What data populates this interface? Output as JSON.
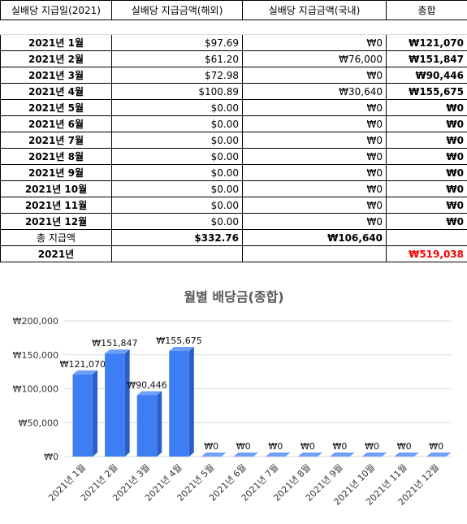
{
  "table": {
    "headers": [
      "실배당 지급일(2021)",
      "실배당 지급금액(해외)",
      "실배당 지급금액(국내)",
      "총합"
    ],
    "rows": [
      {
        "month": "2021년 1월",
        "overseas": "$97.69",
        "domestic": "₩0",
        "total": "₩121,070"
      },
      {
        "month": "2021년 2월",
        "overseas": "$61.20",
        "domestic": "₩76,000",
        "total": "₩151,847"
      },
      {
        "month": "2021년 3월",
        "overseas": "$72.98",
        "domestic": "₩0",
        "total": "₩90,446"
      },
      {
        "month": "2021년 4월",
        "overseas": "$100.89",
        "domestic": "₩30,640",
        "total": "₩155,675"
      },
      {
        "month": "2021년 5월",
        "overseas": "$0.00",
        "domestic": "₩0",
        "total": "₩0"
      },
      {
        "month": "2021년 6월",
        "overseas": "$0.00",
        "domestic": "₩0",
        "total": "₩0"
      },
      {
        "month": "2021년 7월",
        "overseas": "$0.00",
        "domestic": "₩0",
        "total": "₩0"
      },
      {
        "month": "2021년 8월",
        "overseas": "$0.00",
        "domestic": "₩0",
        "total": "₩0"
      },
      {
        "month": "2021년 9월",
        "overseas": "$0.00",
        "domestic": "₩0",
        "total": "₩0"
      },
      {
        "month": "2021년 10월",
        "overseas": "$0.00",
        "domestic": "₩0",
        "total": "₩0"
      },
      {
        "month": "2021년 11월",
        "overseas": "$0.00",
        "domestic": "₩0",
        "total": "₩0"
      },
      {
        "month": "2021년 12월",
        "overseas": "$0.00",
        "domestic": "₩0",
        "total": "₩0"
      }
    ],
    "sum_row": {
      "label": "총 지급액",
      "overseas": "$332.76",
      "domestic": "₩106,640"
    },
    "year_row": {
      "label": "2021년",
      "total": "₩519,038"
    }
  },
  "chart_data": {
    "type": "bar",
    "title": "월별 배당금(종합)",
    "categories": [
      "2021년 1월",
      "2021년 2월",
      "2021년 3월",
      "2021년 4월",
      "2021년 5월",
      "2021년 6월",
      "2021년 7월",
      "2021년 8월",
      "2021년 9월",
      "2021년 10월",
      "2021년 11월",
      "2021년 12월"
    ],
    "values": [
      121070,
      151847,
      90446,
      155675,
      0,
      0,
      0,
      0,
      0,
      0,
      0,
      0
    ],
    "data_labels": [
      "₩121,070",
      "₩151,847",
      "₩90,446",
      "₩155,675",
      "₩0",
      "₩0",
      "₩0",
      "₩0",
      "₩0",
      "₩0",
      "₩0",
      "₩0"
    ],
    "yticks": [
      0,
      50000,
      100000,
      150000,
      200000
    ],
    "ytick_labels": [
      "₩0",
      "₩50,000",
      "₩100,000",
      "₩150,000",
      "₩200,000"
    ],
    "ylim": [
      0,
      200000
    ],
    "grid": true,
    "bar_color": "#3d7ef5"
  }
}
